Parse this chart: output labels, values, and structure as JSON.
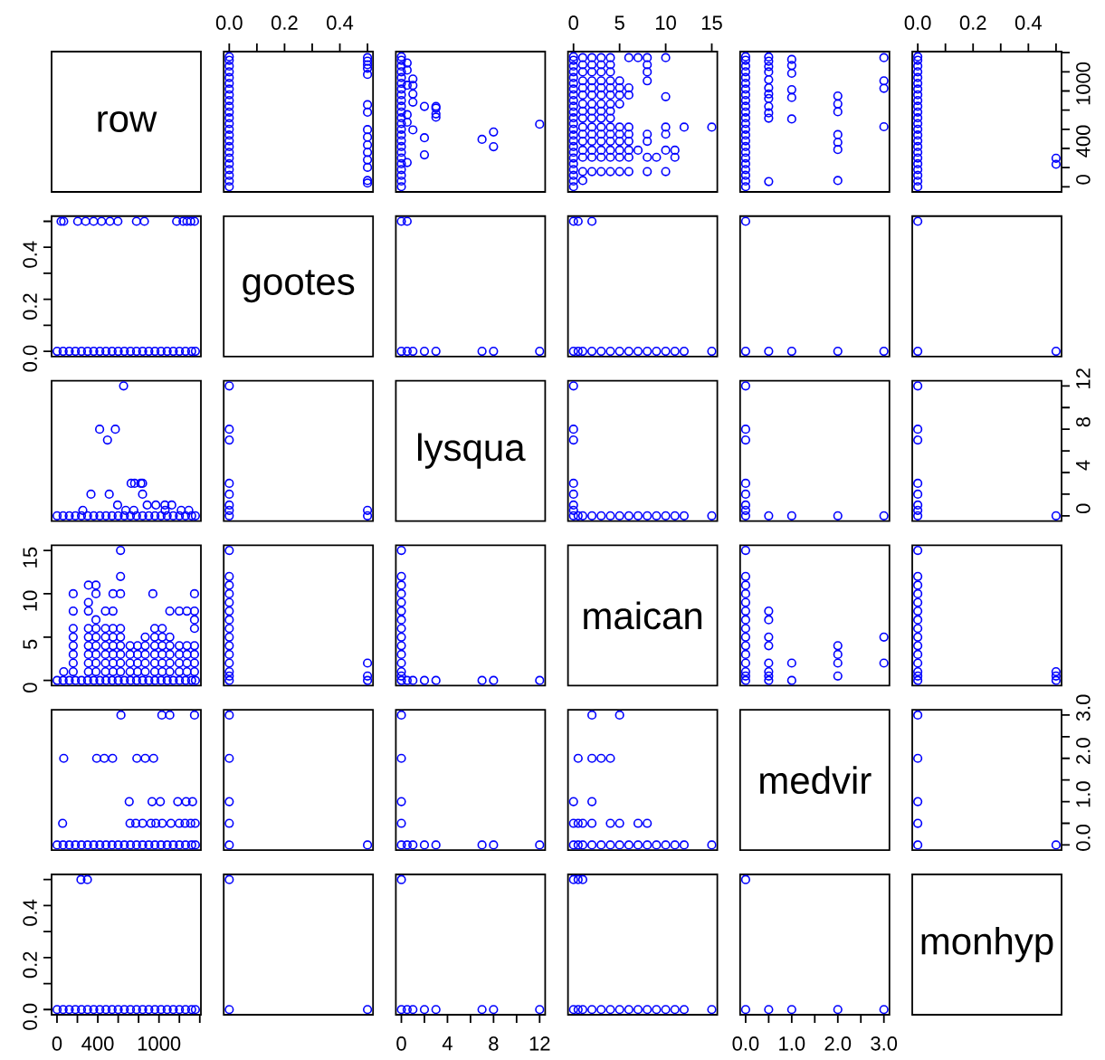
{
  "chart_data": [
    {
      "type": "other",
      "title": "row"
    },
    {
      "type": "scatter",
      "color": "#0000ff",
      "marker": "circle",
      "xlim": [
        -0.02,
        0.52
      ],
      "ylim": [
        -53,
        1411
      ],
      "tick_labels": "x",
      "xticks": [
        {
          "value": 0,
          "label": "0.0"
        },
        {
          "value": 0.1,
          "label": null
        },
        {
          "value": 0.2,
          "label": "0.2"
        },
        {
          "value": 0.3,
          "label": null
        },
        {
          "value": 0.4,
          "label": "0.4"
        },
        {
          "value": 0.5,
          "label": null
        }
      ],
      "x": [
        0,
        0,
        0,
        0,
        0,
        0,
        0,
        0,
        0,
        0,
        0,
        0,
        0,
        0,
        0,
        0,
        0,
        0,
        0,
        0,
        0,
        0,
        0,
        0,
        0.5,
        0.5,
        0.5,
        0.5,
        0.5,
        0.5,
        0.5,
        0.5,
        0.5,
        0.5,
        0.5,
        0.5,
        0.5,
        0.5,
        0.5
      ],
      "values": [
        1,
        60,
        120,
        180,
        240,
        300,
        360,
        420,
        480,
        540,
        600,
        660,
        720,
        780,
        840,
        900,
        960,
        1020,
        1080,
        1140,
        1200,
        1260,
        1320,
        1357,
        40,
        66,
        203,
        281,
        359,
        437,
        519,
        597,
        779,
        857,
        1173,
        1236,
        1274,
        1311,
        1348
      ]
    },
    {
      "type": "scatter",
      "color": "#0000ff",
      "marker": "circle",
      "xlim": [
        -0.48,
        12.48
      ],
      "ylim": [
        -53,
        1411
      ],
      "tick_labels": false,
      "x": [
        0,
        0,
        0,
        0,
        0,
        0,
        0,
        0,
        0,
        0,
        0,
        0,
        0,
        0,
        0,
        0,
        0,
        0,
        0,
        0,
        0,
        0,
        0,
        0,
        0.5,
        0.5,
        0.5,
        0.5,
        0.5,
        0.5,
        1,
        1,
        1,
        1,
        1,
        2,
        2,
        2,
        3,
        3,
        3,
        3,
        7,
        8,
        8,
        12
      ],
      "values": [
        1,
        60,
        120,
        180,
        240,
        300,
        360,
        420,
        480,
        540,
        600,
        660,
        720,
        780,
        840,
        900,
        960,
        1020,
        1080,
        1140,
        1200,
        1260,
        1320,
        1357,
        253,
        674,
        753,
        1060,
        1218,
        1292,
        594,
        884,
        969,
        1058,
        1125,
        333,
        512,
        839,
        727,
        761,
        821,
        839,
        495,
        418,
        572,
        653
      ]
    },
    {
      "type": "scatter",
      "color": "#0000ff",
      "marker": "circle",
      "xlim": [
        -0.6,
        15.6
      ],
      "ylim": [
        -53,
        1411
      ],
      "tick_labels": "x",
      "xticks": [
        0,
        5,
        10,
        15
      ],
      "x": [
        0,
        0,
        0,
        0,
        0,
        0,
        0,
        0,
        0,
        0,
        0,
        0,
        0,
        0,
        0,
        0,
        0,
        0,
        0,
        0,
        0,
        0,
        0,
        0,
        1,
        1,
        1,
        1,
        1,
        1,
        1,
        1,
        1,
        1,
        1,
        1,
        1,
        1,
        1,
        1,
        2,
        2,
        2,
        2,
        2,
        2,
        2,
        2,
        2,
        2,
        2,
        2,
        2,
        2,
        2,
        3,
        3,
        3,
        3,
        3,
        3,
        3,
        3,
        3,
        3,
        3,
        3,
        3,
        3,
        3,
        4,
        4,
        4,
        4,
        4,
        4,
        4,
        4,
        4,
        4,
        4,
        4,
        4,
        4,
        4,
        5,
        5,
        5,
        5,
        5,
        5,
        5,
        5,
        5,
        5,
        6,
        6,
        6,
        6,
        6,
        6,
        6,
        6,
        6,
        7,
        7,
        8,
        8,
        8,
        8,
        8,
        8,
        8,
        8,
        9,
        10,
        10,
        10,
        10,
        10,
        10,
        11,
        11,
        12,
        15
      ],
      "values": [
        1,
        60,
        120,
        180,
        240,
        300,
        360,
        420,
        480,
        540,
        600,
        660,
        720,
        780,
        840,
        900,
        960,
        1020,
        1080,
        1140,
        1200,
        1260,
        1320,
        1357,
        1348,
        1274,
        1199,
        1106,
        1032,
        958,
        865,
        790,
        716,
        623,
        549,
        475,
        382,
        308,
        159,
        66,
        1348,
        1274,
        1199,
        1106,
        1032,
        958,
        865,
        790,
        716,
        623,
        549,
        475,
        382,
        308,
        159,
        1348,
        1274,
        1199,
        1106,
        1032,
        958,
        865,
        790,
        716,
        623,
        549,
        475,
        382,
        308,
        159,
        1348,
        1274,
        1199,
        1106,
        1032,
        958,
        865,
        790,
        716,
        623,
        549,
        475,
        382,
        308,
        159,
        1106,
        1032,
        958,
        865,
        623,
        549,
        475,
        382,
        308,
        159,
        1348,
        1032,
        958,
        623,
        549,
        475,
        382,
        308,
        159,
        1348,
        382,
        1348,
        1274,
        1199,
        1106,
        549,
        475,
        308,
        159,
        308,
        1348,
        940,
        623,
        549,
        382,
        159,
        382,
        308,
        623,
        623
      ]
    },
    {
      "type": "scatter",
      "color": "#0000ff",
      "marker": "circle",
      "xlim": [
        -0.12,
        3.12
      ],
      "ylim": [
        -53,
        1411
      ],
      "tick_labels": false,
      "x": [
        0,
        0,
        0,
        0,
        0,
        0,
        0,
        0,
        0,
        0,
        0,
        0,
        0,
        0,
        0,
        0,
        0,
        0,
        0,
        0,
        0,
        0,
        0,
        0,
        0.5,
        0.5,
        0.5,
        0.5,
        0.5,
        0.5,
        0.5,
        0.5,
        0.5,
        0.5,
        0.5,
        0.5,
        1,
        1,
        1,
        1,
        1,
        1,
        2,
        2,
        2,
        2,
        2,
        2,
        2,
        3,
        3,
        3,
        3
      ],
      "values": [
        1,
        60,
        120,
        180,
        240,
        300,
        360,
        420,
        480,
        540,
        600,
        660,
        720,
        780,
        840,
        900,
        960,
        1020,
        1080,
        1140,
        1200,
        1260,
        1320,
        1357,
        1355,
        1311,
        1255,
        1199,
        1117,
        1032,
        969,
        921,
        839,
        772,
        716,
        55,
        1329,
        1266,
        1184,
        1013,
        932,
        708,
        947,
        865,
        783,
        545,
        464,
        389,
        66,
        1348,
        1106,
        1028,
        627
      ]
    },
    {
      "type": "scatter",
      "color": "#0000ff",
      "marker": "circle",
      "xlim": [
        -0.02,
        0.52
      ],
      "ylim": [
        -53,
        1411
      ],
      "xticks": [
        {
          "value": 0,
          "label": "0.0"
        },
        {
          "value": 0.1,
          "label": null
        },
        {
          "value": 0.2,
          "label": "0.2"
        },
        {
          "value": 0.3,
          "label": null
        },
        {
          "value": 0.4,
          "label": "0.4"
        },
        {
          "value": 0.5,
          "label": null
        }
      ],
      "yticks": [
        0,
        {
          "value": 200,
          "label": null
        },
        400,
        {
          "value": 600,
          "label": null
        },
        {
          "value": 800,
          "label": null
        },
        1000,
        {
          "value": 1200,
          "label": null
        },
        {
          "value": 1400,
          "label": null
        }
      ],
      "x": [
        0,
        0,
        0,
        0,
        0,
        0,
        0,
        0,
        0,
        0,
        0,
        0,
        0,
        0,
        0,
        0,
        0,
        0,
        0,
        0,
        0,
        0,
        0,
        0,
        0.5,
        0.5
      ],
      "values": [
        1,
        60,
        120,
        180,
        240,
        300,
        360,
        420,
        480,
        540,
        600,
        660,
        720,
        780,
        840,
        900,
        960,
        1020,
        1080,
        1140,
        1200,
        1260,
        1320,
        1357,
        235,
        298
      ]
    },
    {
      "type": "scatter",
      "color": "#0000ff",
      "marker": "circle",
      "xlim": [
        -53,
        1411
      ],
      "ylim": [
        -0.02,
        0.52
      ],
      "tick_labels": "y",
      "yticks": [
        {
          "value": 0,
          "label": "0.0"
        },
        {
          "value": 0.1,
          "label": null
        },
        {
          "value": 0.2,
          "label": "0.2"
        },
        {
          "value": 0.3,
          "label": null
        },
        {
          "value": 0.4,
          "label": "0.4"
        },
        {
          "value": 0.5,
          "label": null
        }
      ],
      "x": [
        1,
        60,
        120,
        180,
        240,
        300,
        360,
        420,
        480,
        540,
        600,
        660,
        720,
        780,
        840,
        900,
        960,
        1020,
        1080,
        1140,
        1200,
        1260,
        1320,
        1357,
        40,
        66,
        203,
        281,
        359,
        437,
        519,
        597,
        779,
        857,
        1173,
        1236,
        1274,
        1311,
        1348
      ],
      "values": [
        0,
        0,
        0,
        0,
        0,
        0,
        0,
        0,
        0,
        0,
        0,
        0,
        0,
        0,
        0,
        0,
        0,
        0,
        0,
        0,
        0,
        0,
        0,
        0,
        0.5,
        0.5,
        0.5,
        0.5,
        0.5,
        0.5,
        0.5,
        0.5,
        0.5,
        0.5,
        0.5,
        0.5,
        0.5,
        0.5,
        0.5
      ]
    },
    {
      "type": "other",
      "title": "gootes"
    },
    {
      "type": "scatter",
      "color": "#0000ff",
      "marker": "circle",
      "xlim": [
        -0.48,
        12.48
      ],
      "ylim": [
        -0.02,
        0.52
      ],
      "tick_labels": false,
      "x": [
        0,
        0.5,
        1,
        2,
        3,
        7,
        8,
        12,
        0,
        0.5
      ],
      "values": [
        0,
        0,
        0,
        0,
        0,
        0,
        0,
        0,
        0.5,
        0.5
      ]
    },
    {
      "type": "scatter",
      "color": "#0000ff",
      "marker": "circle",
      "xlim": [
        -0.6,
        15.6
      ],
      "ylim": [
        -0.02,
        0.52
      ],
      "tick_labels": false,
      "x": [
        0,
        0.5,
        1,
        2,
        3,
        4,
        5,
        6,
        7,
        8,
        9,
        10,
        11,
        12,
        15,
        0,
        0.5,
        2
      ],
      "values": [
        0,
        0,
        0,
        0,
        0,
        0,
        0,
        0,
        0,
        0,
        0,
        0,
        0,
        0,
        0,
        0.5,
        0.5,
        0.5
      ]
    },
    {
      "type": "scatter",
      "color": "#0000ff",
      "marker": "circle",
      "xlim": [
        -0.12,
        3.12
      ],
      "ylim": [
        -0.02,
        0.52
      ],
      "tick_labels": false,
      "x": [
        0,
        0.5,
        1,
        2,
        3,
        0
      ],
      "values": [
        0,
        0,
        0,
        0,
        0,
        0.5
      ]
    },
    {
      "type": "scatter",
      "color": "#0000ff",
      "marker": "circle",
      "xlim": [
        -0.02,
        0.52
      ],
      "ylim": [
        -0.02,
        0.52
      ],
      "tick_labels": false,
      "x": [
        0,
        0.5,
        0
      ],
      "values": [
        0,
        0,
        0.5
      ]
    },
    {
      "type": "scatter",
      "color": "#0000ff",
      "marker": "circle",
      "xlim": [
        -53,
        1411
      ],
      "ylim": [
        -0.48,
        12.48
      ],
      "tick_labels": false,
      "x": [
        1,
        60,
        120,
        180,
        240,
        300,
        360,
        420,
        480,
        540,
        600,
        660,
        720,
        780,
        840,
        900,
        960,
        1020,
        1080,
        1140,
        1200,
        1260,
        1320,
        1357,
        253,
        674,
        753,
        1060,
        1218,
        1292,
        594,
        884,
        969,
        1058,
        1125,
        333,
        512,
        839,
        727,
        761,
        821,
        839,
        495,
        418,
        572,
        653
      ],
      "values": [
        0,
        0,
        0,
        0,
        0,
        0,
        0,
        0,
        0,
        0,
        0,
        0,
        0,
        0,
        0,
        0,
        0,
        0,
        0,
        0,
        0,
        0,
        0,
        0,
        0.5,
        0.5,
        0.5,
        0.5,
        0.5,
        0.5,
        1,
        1,
        1,
        1,
        1,
        2,
        2,
        2,
        3,
        3,
        3,
        3,
        7,
        8,
        8,
        12
      ]
    },
    {
      "type": "scatter",
      "color": "#0000ff",
      "marker": "circle",
      "xlim": [
        -0.02,
        0.52
      ],
      "ylim": [
        -0.48,
        12.48
      ],
      "tick_labels": false,
      "x": [
        0,
        0,
        0,
        0,
        0,
        0,
        0,
        0,
        0.5,
        0.5
      ],
      "values": [
        0,
        0.5,
        1,
        2,
        3,
        7,
        8,
        12,
        0,
        0.5
      ]
    },
    {
      "type": "other",
      "title": "lysqua"
    },
    {
      "type": "scatter",
      "color": "#0000ff",
      "marker": "circle",
      "xlim": [
        -0.6,
        15.6
      ],
      "ylim": [
        -0.48,
        12.48
      ],
      "tick_labels": false,
      "x": [
        0,
        0,
        0,
        0,
        0,
        0,
        0,
        0,
        0.5,
        1,
        2,
        3,
        4,
        5,
        6,
        7,
        8,
        9,
        10,
        11,
        12,
        15
      ],
      "values": [
        0,
        0.5,
        1,
        2,
        3,
        7,
        8,
        12,
        0,
        0,
        0,
        0,
        0,
        0,
        0,
        0,
        0,
        0,
        0,
        0,
        0,
        0
      ]
    },
    {
      "type": "scatter",
      "color": "#0000ff",
      "marker": "circle",
      "xlim": [
        -0.12,
        3.12
      ],
      "ylim": [
        -0.48,
        12.48
      ],
      "tick_labels": false,
      "x": [
        0,
        0,
        0,
        0,
        0,
        0,
        0,
        0,
        0.5,
        1,
        2,
        3
      ],
      "values": [
        0,
        0.5,
        1,
        2,
        3,
        7,
        8,
        12,
        0,
        0,
        0,
        0
      ]
    },
    {
      "type": "scatter",
      "color": "#0000ff",
      "marker": "circle",
      "xlim": [
        -0.02,
        0.52
      ],
      "ylim": [
        -0.48,
        12.48
      ],
      "tick_labels": "y",
      "yticks": [
        0,
        {
          "value": 2,
          "label": null
        },
        4,
        {
          "value": 6,
          "label": null
        },
        8,
        {
          "value": 10,
          "label": null
        },
        12
      ],
      "x": [
        0,
        0,
        0,
        0,
        0,
        0,
        0,
        0,
        0.5
      ],
      "values": [
        0,
        0.5,
        1,
        2,
        3,
        7,
        8,
        12,
        0
      ]
    },
    {
      "type": "scatter",
      "color": "#0000ff",
      "marker": "circle",
      "xlim": [
        -53,
        1411
      ],
      "ylim": [
        -0.6,
        15.6
      ],
      "tick_labels": "y",
      "yticks": [
        0,
        5,
        10,
        15
      ],
      "x": [
        1,
        60,
        120,
        180,
        240,
        300,
        360,
        420,
        480,
        540,
        600,
        660,
        720,
        780,
        840,
        900,
        960,
        1020,
        1080,
        1140,
        1200,
        1260,
        1320,
        1357,
        1348,
        1274,
        1199,
        1106,
        1032,
        958,
        865,
        790,
        716,
        623,
        549,
        475,
        382,
        308,
        159,
        66,
        1348,
        1274,
        1199,
        1106,
        1032,
        958,
        865,
        790,
        716,
        623,
        549,
        475,
        382,
        308,
        159,
        1348,
        1274,
        1199,
        1106,
        1032,
        958,
        865,
        790,
        716,
        623,
        549,
        475,
        382,
        308,
        159,
        1348,
        1274,
        1199,
        1106,
        1032,
        958,
        865,
        790,
        716,
        623,
        549,
        475,
        382,
        308,
        159,
        1106,
        1032,
        958,
        865,
        623,
        549,
        475,
        382,
        308,
        159,
        1348,
        1032,
        958,
        623,
        549,
        475,
        382,
        308,
        159,
        1348,
        382,
        1348,
        1274,
        1199,
        1106,
        549,
        475,
        308,
        159,
        308,
        1348,
        940,
        623,
        549,
        382,
        159,
        382,
        308,
        623,
        623
      ],
      "values": [
        0,
        0,
        0,
        0,
        0,
        0,
        0,
        0,
        0,
        0,
        0,
        0,
        0,
        0,
        0,
        0,
        0,
        0,
        0,
        0,
        0,
        0,
        0,
        0,
        1,
        1,
        1,
        1,
        1,
        1,
        1,
        1,
        1,
        1,
        1,
        1,
        1,
        1,
        1,
        1,
        2,
        2,
        2,
        2,
        2,
        2,
        2,
        2,
        2,
        2,
        2,
        2,
        2,
        2,
        2,
        3,
        3,
        3,
        3,
        3,
        3,
        3,
        3,
        3,
        3,
        3,
        3,
        3,
        3,
        3,
        4,
        4,
        4,
        4,
        4,
        4,
        4,
        4,
        4,
        4,
        4,
        4,
        4,
        4,
        4,
        5,
        5,
        5,
        5,
        5,
        5,
        5,
        5,
        5,
        5,
        6,
        6,
        6,
        6,
        6,
        6,
        6,
        6,
        6,
        7,
        7,
        8,
        8,
        8,
        8,
        8,
        8,
        8,
        8,
        9,
        10,
        10,
        10,
        10,
        10,
        10,
        11,
        11,
        12,
        15
      ]
    },
    {
      "type": "scatter",
      "color": "#0000ff",
      "marker": "circle",
      "xlim": [
        -0.02,
        0.52
      ],
      "ylim": [
        -0.6,
        15.6
      ],
      "tick_labels": false,
      "x": [
        0,
        0,
        0,
        0,
        0,
        0,
        0,
        0,
        0,
        0,
        0,
        0,
        0,
        0,
        0,
        0.5,
        0.5,
        0.5
      ],
      "values": [
        0,
        0.5,
        1,
        2,
        3,
        4,
        5,
        6,
        7,
        8,
        9,
        10,
        11,
        12,
        15,
        0,
        0.5,
        2
      ]
    },
    {
      "type": "scatter",
      "color": "#0000ff",
      "marker": "circle",
      "xlim": [
        -0.48,
        12.48
      ],
      "ylim": [
        -0.6,
        15.6
      ],
      "tick_labels": false,
      "x": [
        0,
        0.5,
        1,
        2,
        3,
        7,
        8,
        12,
        0,
        0,
        0,
        0,
        0,
        0,
        0,
        0,
        0,
        0,
        0,
        0,
        0,
        0
      ],
      "values": [
        0,
        0,
        0,
        0,
        0,
        0,
        0,
        0,
        0.5,
        1,
        2,
        3,
        4,
        5,
        6,
        7,
        8,
        9,
        10,
        11,
        12,
        15
      ]
    },
    {
      "type": "other",
      "title": "maican"
    },
    {
      "type": "scatter",
      "color": "#0000ff",
      "marker": "circle",
      "xlim": [
        -0.12,
        3.12
      ],
      "ylim": [
        -0.6,
        15.6
      ],
      "tick_labels": false,
      "x": [
        0,
        0,
        0,
        0,
        0,
        0,
        0,
        0,
        0,
        0,
        0,
        0,
        0,
        0,
        0,
        0.5,
        0.5,
        0.5,
        0.5,
        0.5,
        0.5,
        0.5,
        0.5,
        1,
        1,
        2,
        2,
        2,
        2,
        3,
        3
      ],
      "values": [
        0,
        0.5,
        1,
        2,
        3,
        4,
        5,
        6,
        7,
        8,
        9,
        10,
        11,
        12,
        15,
        0,
        0.5,
        1,
        2,
        4,
        5,
        7,
        8,
        0,
        2,
        0.5,
        2,
        3,
        4,
        2,
        5
      ]
    },
    {
      "type": "scatter",
      "color": "#0000ff",
      "marker": "circle",
      "xlim": [
        -0.02,
        0.52
      ],
      "ylim": [
        -0.6,
        15.6
      ],
      "tick_labels": false,
      "x": [
        0,
        0,
        0,
        0,
        0,
        0,
        0,
        0,
        0,
        0,
        0,
        0,
        0,
        0,
        0,
        0.5,
        0.5,
        0.5
      ],
      "values": [
        0,
        0.5,
        1,
        2,
        3,
        4,
        5,
        6,
        7,
        8,
        9,
        10,
        11,
        12,
        15,
        0,
        0.5,
        1
      ]
    },
    {
      "type": "scatter",
      "color": "#0000ff",
      "marker": "circle",
      "xlim": [
        -53,
        1411
      ],
      "ylim": [
        -0.12,
        3.12
      ],
      "tick_labels": false,
      "x": [
        1,
        60,
        120,
        180,
        240,
        300,
        360,
        420,
        480,
        540,
        600,
        660,
        720,
        780,
        840,
        900,
        960,
        1020,
        1080,
        1140,
        1200,
        1260,
        1320,
        1357,
        1355,
        1311,
        1255,
        1199,
        1117,
        1032,
        969,
        921,
        839,
        772,
        716,
        55,
        1329,
        1266,
        1184,
        1013,
        932,
        708,
        947,
        865,
        783,
        545,
        464,
        389,
        66,
        1348,
        1106,
        1028,
        627
      ],
      "values": [
        0,
        0,
        0,
        0,
        0,
        0,
        0,
        0,
        0,
        0,
        0,
        0,
        0,
        0,
        0,
        0,
        0,
        0,
        0,
        0,
        0,
        0,
        0,
        0,
        0.5,
        0.5,
        0.5,
        0.5,
        0.5,
        0.5,
        0.5,
        0.5,
        0.5,
        0.5,
        0.5,
        0.5,
        1,
        1,
        1,
        1,
        1,
        1,
        2,
        2,
        2,
        2,
        2,
        2,
        2,
        3,
        3,
        3,
        3
      ]
    },
    {
      "type": "scatter",
      "color": "#0000ff",
      "marker": "circle",
      "xlim": [
        -0.02,
        0.52
      ],
      "ylim": [
        -0.12,
        3.12
      ],
      "tick_labels": false,
      "x": [
        0,
        0,
        0,
        0,
        0,
        0.5
      ],
      "values": [
        0,
        0.5,
        1,
        2,
        3,
        0
      ]
    },
    {
      "type": "scatter",
      "color": "#0000ff",
      "marker": "circle",
      "xlim": [
        -0.48,
        12.48
      ],
      "ylim": [
        -0.12,
        3.12
      ],
      "tick_labels": false,
      "x": [
        0,
        0,
        0,
        0,
        0,
        0.5,
        1,
        2,
        3,
        7,
        8,
        12
      ],
      "values": [
        0,
        0.5,
        1,
        2,
        3,
        0,
        0,
        0,
        0,
        0,
        0,
        0
      ]
    },
    {
      "type": "scatter",
      "color": "#0000ff",
      "marker": "circle",
      "xlim": [
        -0.6,
        15.6
      ],
      "ylim": [
        -0.12,
        3.12
      ],
      "tick_labels": false,
      "x": [
        0,
        0.5,
        1,
        2,
        3,
        4,
        5,
        6,
        7,
        8,
        9,
        10,
        11,
        12,
        15,
        0,
        0.5,
        1,
        2,
        4,
        5,
        7,
        8,
        0,
        2,
        0.5,
        2,
        3,
        4,
        2,
        5
      ],
      "values": [
        0,
        0,
        0,
        0,
        0,
        0,
        0,
        0,
        0,
        0,
        0,
        0,
        0,
        0,
        0,
        0.5,
        0.5,
        0.5,
        0.5,
        0.5,
        0.5,
        0.5,
        0.5,
        1,
        1,
        2,
        2,
        2,
        2,
        3,
        3
      ]
    },
    {
      "type": "other",
      "title": "medvir"
    },
    {
      "type": "scatter",
      "color": "#0000ff",
      "marker": "circle",
      "xlim": [
        -0.02,
        0.52
      ],
      "ylim": [
        -0.12,
        3.12
      ],
      "tick_labels": "y",
      "yticks": [
        {
          "value": 0,
          "label": "0.0"
        },
        {
          "value": 0.5,
          "label": null
        },
        {
          "value": 1,
          "label": "1.0"
        },
        {
          "value": 1.5,
          "label": null
        },
        {
          "value": 2,
          "label": "2.0"
        },
        {
          "value": 2.5,
          "label": null
        },
        {
          "value": 3,
          "label": "3.0"
        }
      ],
      "x": [
        0,
        0,
        0,
        0,
        0,
        0.5
      ],
      "values": [
        0,
        0.5,
        1,
        2,
        3,
        0
      ]
    },
    {
      "type": "scatter",
      "color": "#0000ff",
      "marker": "circle",
      "xlim": [
        -53,
        1411
      ],
      "ylim": [
        -0.02,
        0.52
      ],
      "xticks": [
        0,
        {
          "value": 200,
          "label": null
        },
        400,
        {
          "value": 600,
          "label": null
        },
        {
          "value": 800,
          "label": null
        },
        1000,
        {
          "value": 1200,
          "label": null
        },
        {
          "value": 1400,
          "label": null
        }
      ],
      "yticks": [
        {
          "value": 0,
          "label": "0.0"
        },
        {
          "value": 0.1,
          "label": null
        },
        {
          "value": 0.2,
          "label": "0.2"
        },
        {
          "value": 0.3,
          "label": null
        },
        {
          "value": 0.4,
          "label": "0.4"
        },
        {
          "value": 0.5,
          "label": null
        }
      ],
      "x": [
        1,
        60,
        120,
        180,
        240,
        300,
        360,
        420,
        480,
        540,
        600,
        660,
        720,
        780,
        840,
        900,
        960,
        1020,
        1080,
        1140,
        1200,
        1260,
        1320,
        1357,
        235,
        298
      ],
      "values": [
        0,
        0,
        0,
        0,
        0,
        0,
        0,
        0,
        0,
        0,
        0,
        0,
        0,
        0,
        0,
        0,
        0,
        0,
        0,
        0,
        0,
        0,
        0,
        0,
        0.5,
        0.5
      ]
    },
    {
      "type": "scatter",
      "color": "#0000ff",
      "marker": "circle",
      "xlim": [
        -0.02,
        0.52
      ],
      "ylim": [
        -0.02,
        0.52
      ],
      "tick_labels": false,
      "x": [
        0,
        0,
        0.5
      ],
      "values": [
        0,
        0.5,
        0
      ]
    },
    {
      "type": "scatter",
      "color": "#0000ff",
      "marker": "circle",
      "xlim": [
        -0.48,
        12.48
      ],
      "ylim": [
        -0.02,
        0.52
      ],
      "tick_labels": "x",
      "xticks": [
        0,
        {
          "value": 2,
          "label": null
        },
        4,
        {
          "value": 6,
          "label": null
        },
        8,
        {
          "value": 10,
          "label": null
        },
        12
      ],
      "x": [
        0,
        0.5,
        1,
        2,
        3,
        7,
        8,
        12,
        0
      ],
      "values": [
        0,
        0,
        0,
        0,
        0,
        0,
        0,
        0,
        0.5
      ]
    },
    {
      "type": "scatter",
      "color": "#0000ff",
      "marker": "circle",
      "xlim": [
        -0.6,
        15.6
      ],
      "ylim": [
        -0.02,
        0.52
      ],
      "tick_labels": false,
      "x": [
        0,
        0.5,
        1,
        2,
        3,
        4,
        5,
        6,
        7,
        8,
        9,
        10,
        11,
        12,
        15,
        0,
        0.5,
        1
      ],
      "values": [
        0,
        0,
        0,
        0,
        0,
        0,
        0,
        0,
        0,
        0,
        0,
        0,
        0,
        0,
        0,
        0.5,
        0.5,
        0.5
      ]
    },
    {
      "type": "scatter",
      "color": "#0000ff",
      "marker": "circle",
      "xlim": [
        -0.12,
        3.12
      ],
      "ylim": [
        -0.02,
        0.52
      ],
      "tick_labels": "x",
      "xticks": [
        {
          "value": 0,
          "label": "0.0"
        },
        {
          "value": 0.5,
          "label": null
        },
        {
          "value": 1,
          "label": "1.0"
        },
        {
          "value": 1.5,
          "label": null
        },
        {
          "value": 2,
          "label": "2.0"
        },
        {
          "value": 2.5,
          "label": null
        },
        {
          "value": 3,
          "label": "3.0"
        }
      ],
      "x": [
        0,
        0.5,
        1,
        2,
        3,
        0
      ],
      "values": [
        0,
        0,
        0,
        0,
        0,
        0.5
      ]
    },
    {
      "type": "other",
      "title": "monhyp"
    }
  ]
}
